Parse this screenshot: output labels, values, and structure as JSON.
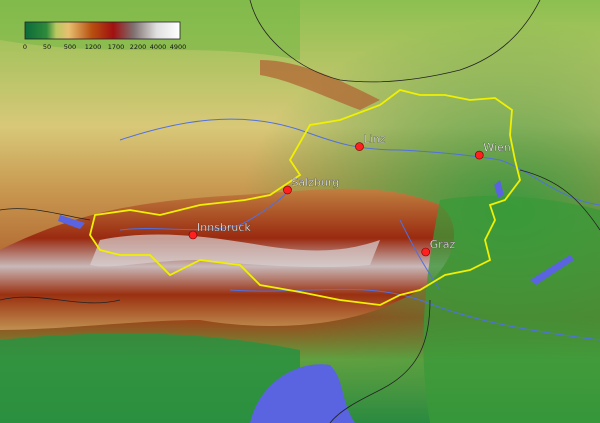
{
  "legend": {
    "labels": [
      "0",
      "50",
      "500",
      "1200",
      "1700",
      "2200",
      "4000",
      "4900"
    ],
    "colors": [
      "#0b6b3a",
      "#4ea83a",
      "#e8d070",
      "#c07020",
      "#a01010",
      "#8a7070",
      "#d8d8d8",
      "#ffffff"
    ]
  },
  "cities": [
    {
      "name": "Linz",
      "lon": 14.29,
      "lat": 48.31
    },
    {
      "name": "Wien",
      "lon": 16.37,
      "lat": 48.21
    },
    {
      "name": "Salzburg",
      "lon": 13.04,
      "lat": 47.8
    },
    {
      "name": "Innsbruck",
      "lon": 11.4,
      "lat": 47.27
    },
    {
      "name": "Graz",
      "lon": 15.44,
      "lat": 47.07
    }
  ],
  "colors": {
    "border": "#f0f000",
    "city": "#ff2020",
    "water": "#5060e0",
    "rivers": "#5070e0"
  }
}
